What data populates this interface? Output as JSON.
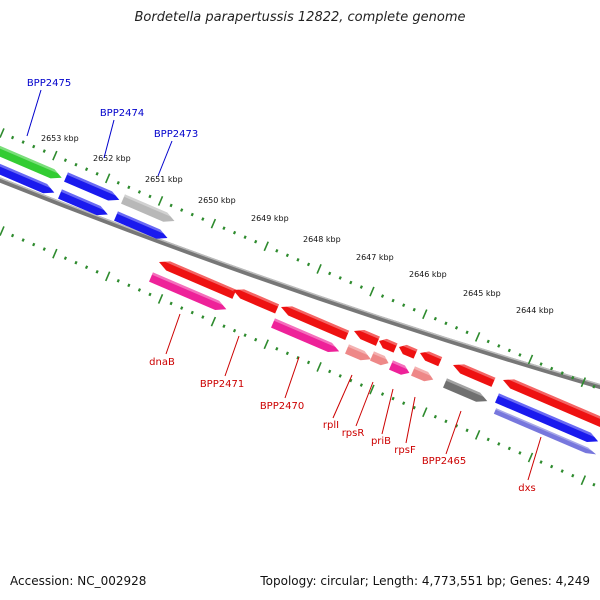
{
  "title": "Bordetella parapertussis 12822, complete genome",
  "footer": {
    "accession": "Accession: NC_002928",
    "summary": "Topology: circular; Length: 4,773,551 bp; Genes: 4,249"
  },
  "colors": {
    "backbone": "#888888",
    "ticks": "#2e8b2e",
    "label_forward": "#0000cc",
    "label_reverse": "#cc0000",
    "gene_green": "#33cc33",
    "gene_blue": "#1a1aee",
    "gene_gray": "#b8b8b8",
    "gene_red": "#ee1111",
    "gene_pink": "#ee2299",
    "gene_lightred": "#ee8888",
    "gene_darkgray": "#707070",
    "gene_lavender": "#7777dd"
  },
  "scale_labels": [
    "2653 kbp",
    "2652 kbp",
    "2651 kbp",
    "2650 kbp",
    "2649 kbp",
    "2648 kbp",
    "2647 kbp",
    "2646 kbp",
    "2645 kbp",
    "2644 kbp"
  ],
  "forward_labels": [
    "BPP2475",
    "BPP2474",
    "BPP2473"
  ],
  "reverse_labels": [
    "dnaB",
    "BPP2471",
    "BPP2470",
    "rplI",
    "rpsR",
    "priB",
    "rpsF",
    "BPP2465",
    "dxs"
  ]
}
